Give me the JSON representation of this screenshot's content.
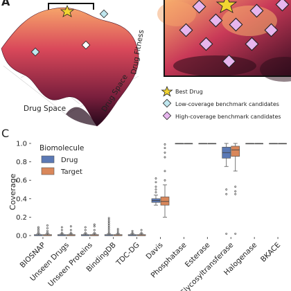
{
  "panels": {
    "a_label": "A",
    "c_label": "C"
  },
  "landscape": {
    "x_axis": "Drug Space",
    "y_axis": "Drug Space",
    "z_axis": "Drug Fitness"
  },
  "legend_markers": [
    {
      "label": "Best Drug",
      "icon": "star-icon",
      "color": "#f2d431"
    },
    {
      "label": "Low-coverage benchmark candidates",
      "icon": "diamond-icon",
      "color": "#bfe6ee"
    },
    {
      "label": "High-coverage benchmark candidates",
      "icon": "diamond-icon",
      "color": "#e7b6ee"
    }
  ],
  "colors": {
    "drug": "#5b79b5",
    "target": "#d9875a",
    "surface_dark": "#2a0b18",
    "surface_mid": "#b63a55",
    "surface_light": "#f6a46a"
  },
  "chart_data": {
    "type": "box",
    "title": "",
    "xlabel": "",
    "ylabel": "Coverage",
    "ylim": [
      0,
      1.0
    ],
    "yticks": [
      "0.0",
      "0.2",
      "0.4",
      "0.6",
      "0.8",
      "1.0"
    ],
    "legend_title": "Biomolecule",
    "legend_position": "top-left",
    "categories": [
      "BIOSNAP",
      "Unseen Drugs",
      "Unseen Proteins",
      "BindingDB",
      "TDC-DG",
      "Davis",
      "Phosphatase",
      "Esterase",
      "Glycosyltransferase",
      "Halogenase",
      "BKACE"
    ],
    "series": [
      {
        "name": "Drug",
        "boxes": [
          {
            "q1": 0.0,
            "median": 0.0,
            "q3": 0.01,
            "whislo": 0.0,
            "whishi": 0.02,
            "fliers": [
              0.03,
              0.05,
              0.07,
              0.09
            ]
          },
          {
            "q1": 0.0,
            "median": 0.0,
            "q3": 0.01,
            "whislo": 0.0,
            "whishi": 0.02,
            "fliers": [
              0.03,
              0.06,
              0.09
            ]
          },
          {
            "q1": 0.0,
            "median": 0.0,
            "q3": 0.01,
            "whislo": 0.0,
            "whishi": 0.02,
            "fliers": [
              0.03,
              0.06,
              0.09
            ]
          },
          {
            "q1": 0.0,
            "median": 0.0,
            "q3": 0.01,
            "whislo": 0.0,
            "whishi": 0.02,
            "fliers": [
              0.03,
              0.05,
              0.07,
              0.09,
              0.11,
              0.13,
              0.15,
              0.17,
              0.19
            ]
          },
          {
            "q1": 0.0,
            "median": 0.0,
            "q3": 0.01,
            "whislo": 0.0,
            "whishi": 0.02,
            "fliers": [
              0.03,
              0.05
            ]
          },
          {
            "q1": 0.36,
            "median": 0.38,
            "q3": 0.4,
            "whislo": 0.33,
            "whishi": 0.44,
            "fliers": [
              0.47,
              0.5,
              0.53,
              0.58,
              0.62
            ]
          },
          {
            "q1": 1.0,
            "median": 1.0,
            "q3": 1.0,
            "whislo": 1.0,
            "whishi": 1.0,
            "fliers": []
          },
          {
            "q1": 1.0,
            "median": 1.0,
            "q3": 1.0,
            "whislo": 1.0,
            "whishi": 1.0,
            "fliers": []
          },
          {
            "q1": 0.84,
            "median": 0.9,
            "q3": 0.96,
            "whislo": 0.75,
            "whishi": 1.0,
            "fliers": [
              0.5,
              0.45,
              0.02
            ]
          },
          {
            "q1": 1.0,
            "median": 1.0,
            "q3": 1.0,
            "whislo": 1.0,
            "whishi": 1.0,
            "fliers": []
          },
          {
            "q1": 1.0,
            "median": 1.0,
            "q3": 1.0,
            "whislo": 1.0,
            "whishi": 1.0,
            "fliers": []
          }
        ]
      },
      {
        "name": "Target",
        "boxes": [
          {
            "q1": 0.0,
            "median": 0.0,
            "q3": 0.01,
            "whislo": 0.0,
            "whishi": 0.02,
            "fliers": [
              0.03,
              0.05,
              0.08,
              0.11
            ]
          },
          {
            "q1": 0.0,
            "median": 0.0,
            "q3": 0.01,
            "whislo": 0.0,
            "whishi": 0.02,
            "fliers": [
              0.03,
              0.06,
              0.1
            ]
          },
          {
            "q1": 0.0,
            "median": 0.0,
            "q3": 0.01,
            "whislo": 0.0,
            "whishi": 0.02,
            "fliers": [
              0.03,
              0.06,
              0.1,
              0.12
            ]
          },
          {
            "q1": 0.0,
            "median": 0.0,
            "q3": 0.01,
            "whislo": 0.0,
            "whishi": 0.02,
            "fliers": [
              0.03,
              0.05,
              0.07
            ]
          },
          {
            "q1": 0.0,
            "median": 0.0,
            "q3": 0.01,
            "whislo": 0.0,
            "whishi": 0.02,
            "fliers": [
              0.03,
              0.06
            ]
          },
          {
            "q1": 0.33,
            "median": 0.37,
            "q3": 0.42,
            "whislo": 0.2,
            "whishi": 0.55,
            "fliers": [
              0.6,
              0.7,
              0.85,
              0.9,
              0.95,
              0.99
            ]
          },
          {
            "q1": 1.0,
            "median": 1.0,
            "q3": 1.0,
            "whislo": 1.0,
            "whishi": 1.0,
            "fliers": []
          },
          {
            "q1": 1.0,
            "median": 1.0,
            "q3": 1.0,
            "whislo": 1.0,
            "whishi": 1.0,
            "fliers": []
          },
          {
            "q1": 0.86,
            "median": 0.93,
            "q3": 0.97,
            "whislo": 0.7,
            "whishi": 1.0,
            "fliers": [
              0.53,
              0.48,
              0.45,
              0.02
            ]
          },
          {
            "q1": 1.0,
            "median": 1.0,
            "q3": 1.0,
            "whislo": 1.0,
            "whishi": 1.0,
            "fliers": []
          },
          {
            "q1": 1.0,
            "median": 1.0,
            "q3": 1.0,
            "whislo": 1.0,
            "whishi": 1.0,
            "fliers": []
          }
        ]
      }
    ]
  }
}
